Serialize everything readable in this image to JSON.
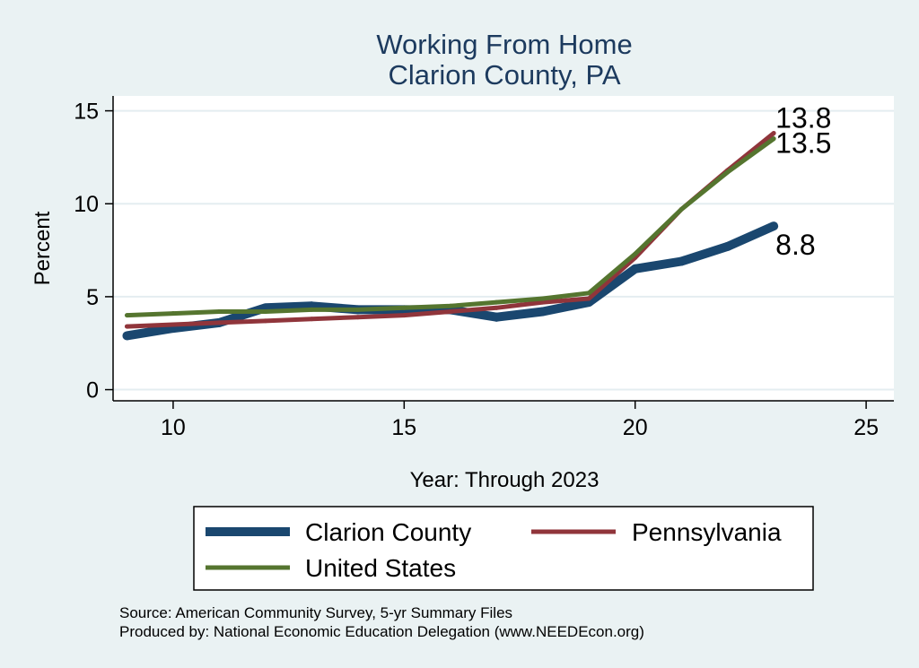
{
  "chart_data": {
    "type": "line",
    "title": [
      "Working From Home",
      "Clarion County, PA"
    ],
    "xlabel": "Year: Through 2023",
    "ylabel": "Percent",
    "xlim": [
      8.7,
      25.6
    ],
    "ylim": [
      -0.6,
      15.8
    ],
    "xticks": [
      10,
      15,
      20,
      25
    ],
    "yticks": [
      0,
      5,
      10,
      15
    ],
    "grid": true,
    "legend_position": "bottom",
    "x": [
      9,
      10,
      11,
      12,
      13,
      14,
      15,
      16,
      17,
      18,
      19,
      20,
      21,
      22,
      23
    ],
    "series": [
      {
        "name": "Clarion County",
        "color": "#1a476f",
        "values": [
          2.9,
          3.3,
          3.6,
          4.4,
          4.5,
          4.3,
          4.3,
          4.3,
          3.9,
          4.2,
          4.7,
          6.5,
          6.9,
          7.7,
          8.8
        ],
        "end_label": "8.8"
      },
      {
        "name": "Pennsylvania",
        "color": "#90353b",
        "values": [
          3.4,
          3.5,
          3.6,
          3.7,
          3.8,
          3.9,
          4.0,
          4.2,
          4.4,
          4.7,
          4.9,
          7.1,
          9.7,
          11.8,
          13.8
        ],
        "end_label": "13.8"
      },
      {
        "name": "United States",
        "color": "#55752f",
        "values": [
          4.0,
          4.1,
          4.2,
          4.2,
          4.3,
          4.3,
          4.4,
          4.5,
          4.7,
          4.9,
          5.2,
          7.3,
          9.7,
          11.7,
          13.5
        ],
        "end_label": "13.5"
      }
    ]
  },
  "source_lines": [
    "Source: American Community Survey, 5-yr Summary Files",
    "Produced by: National Economic Education Delegation (www.NEEDEcon.org)"
  ]
}
